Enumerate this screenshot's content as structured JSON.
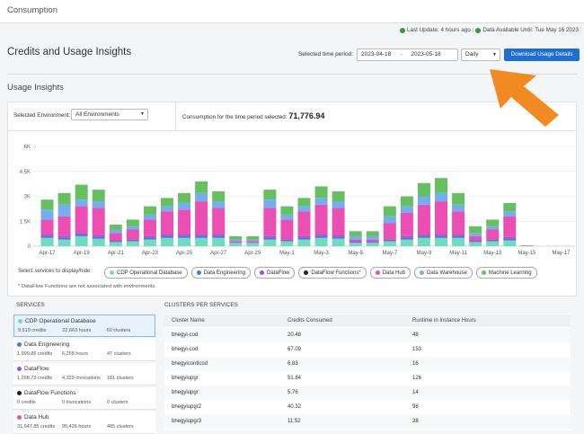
{
  "header": {
    "title": "Consumption",
    "last_update": "Last Update: 4 hours ago",
    "data_available": "Data Available Until: Tue May 16 2023"
  },
  "page_title": "Credits and Usage Insights",
  "controls": {
    "time_period_label": "Selected time period:",
    "start_date": "2023-04-18",
    "end_date": "2023-05-18",
    "granularity": "Daily",
    "download": "Download Usage Details"
  },
  "section_title": "Usage Insights",
  "filters": {
    "environment_label": "Selected Environment:",
    "environment": "All Environments",
    "consumption_label": "Consumption for the time period selected:",
    "consumption": "71,776.94"
  },
  "chart_data": {
    "type": "bar",
    "stacked": true,
    "categories": [
      "Apr-17",
      null,
      "Apr-19",
      null,
      "Apr-21",
      null,
      "Apr-23",
      null,
      "Apr-25",
      null,
      "Apr-27",
      null,
      "Apr-29",
      null,
      "May-1",
      null,
      "May-3",
      null,
      "May-5",
      null,
      "May-7",
      null,
      "May-9",
      null,
      "May-11",
      null,
      "May-13",
      null,
      "May-15",
      null,
      "May-17"
    ],
    "ylim": [
      0,
      6000
    ],
    "yticks": [
      0,
      {
        "value": 1500,
        "label": "1.5K"
      },
      {
        "value": 3000,
        "label": "3K"
      },
      {
        "value": 4500,
        "label": "4.5K"
      },
      {
        "value": 6000,
        "label": "6K"
      }
    ],
    "grid": true,
    "series": [
      {
        "name": "CDP Operational Database",
        "color": "#6ddcc0",
        "values": [
          500,
          400,
          600,
          450,
          250,
          300,
          400,
          500,
          500,
          500,
          500,
          200,
          200,
          400,
          300,
          400,
          500,
          450,
          200,
          200,
          300,
          400,
          500,
          500,
          500,
          250,
          300,
          350,
          0,
          0,
          0
        ]
      },
      {
        "name": "Data Engineering",
        "color": "#3f7fd8",
        "values": [
          100,
          100,
          100,
          100,
          50,
          50,
          100,
          100,
          100,
          100,
          100,
          0,
          0,
          100,
          50,
          100,
          100,
          100,
          50,
          50,
          50,
          100,
          100,
          100,
          100,
          50,
          50,
          100,
          0,
          0,
          0
        ]
      },
      {
        "name": "DataFlow",
        "color": "#a24fd6",
        "values": [
          100,
          100,
          100,
          100,
          50,
          50,
          100,
          100,
          100,
          100,
          100,
          50,
          50,
          100,
          50,
          100,
          100,
          100,
          50,
          50,
          50,
          100,
          100,
          100,
          100,
          50,
          50,
          100,
          0,
          0,
          0
        ]
      },
      {
        "name": "DataFlow Functions*",
        "color": "#222222",
        "values": [
          0,
          0,
          0,
          0,
          0,
          0,
          0,
          0,
          0,
          0,
          0,
          0,
          0,
          0,
          0,
          0,
          0,
          0,
          0,
          0,
          0,
          0,
          0,
          0,
          0,
          0,
          0,
          0,
          0,
          0,
          0
        ]
      },
      {
        "name": "Data Hub",
        "color": "#ec4fb4",
        "values": [
          900,
          1200,
          1600,
          1650,
          450,
          600,
          1000,
          1400,
          1500,
          2000,
          1600,
          50,
          50,
          1700,
          1200,
          1500,
          1800,
          1650,
          100,
          100,
          1000,
          1400,
          1800,
          2000,
          1400,
          250,
          600,
          1250,
          0,
          0,
          0
        ]
      },
      {
        "name": "Data Warehouse",
        "color": "#72aef0",
        "values": [
          600,
          700,
          400,
          400,
          200,
          200,
          300,
          300,
          400,
          500,
          400,
          100,
          100,
          500,
          300,
          300,
          400,
          400,
          200,
          200,
          400,
          400,
          500,
          500,
          400,
          200,
          200,
          300,
          0,
          0,
          0
        ]
      },
      {
        "name": "Machine Learning",
        "color": "#66c060",
        "values": [
          600,
          700,
          900,
          700,
          300,
          400,
          500,
          500,
          600,
          700,
          600,
          200,
          200,
          600,
          500,
          500,
          700,
          600,
          300,
          300,
          600,
          600,
          800,
          900,
          700,
          400,
          400,
          500,
          50,
          0,
          0
        ]
      }
    ]
  },
  "legend_label": "Select services to display/hide:",
  "note": "* DataFlow Functions are not associated with environments.",
  "services": {
    "title": "SERVICES",
    "items": [
      {
        "name": "CDP Operational Database",
        "color": "#6ddcc0",
        "credits": "9,619 credits",
        "usage": "22,663 hours",
        "clusters": "50 clusters"
      },
      {
        "name": "Data Engineering",
        "color": "#3f7fd8",
        "credits": "1,999.86 credits",
        "usage": "6,258 hours",
        "clusters": "47 clusters"
      },
      {
        "name": "DataFlow",
        "color": "#a24fd6",
        "credits": "1,298.73 credits",
        "usage": "4,329 invocations",
        "clusters": "181 clusters"
      },
      {
        "name": "DataFlow Functions",
        "color": "#222222",
        "credits": "0 credits",
        "usage": "0 invocations",
        "clusters": "0 clusters"
      },
      {
        "name": "Data Hub",
        "color": "#ec4fb4",
        "credits": "31,947.85 credits",
        "usage": "95,426 hours",
        "clusters": "405 clusters"
      }
    ]
  },
  "table": {
    "title": "CLUSTERS PER SERVICES",
    "columns": [
      "Cluster Name",
      "Credits Consumed",
      "Runtime in Instance Hours"
    ],
    "rows": [
      [
        "bhegyi-cod",
        "20.48",
        "48"
      ],
      [
        "bhegyi-cod",
        "67.09",
        "153"
      ],
      [
        "bhegyicontlcod",
        "6.83",
        "16"
      ],
      [
        "bhegyiupgr",
        "51.84",
        "126"
      ],
      [
        "bhegyiupgr",
        "5.76",
        "14"
      ],
      [
        "bhegyiupgr2",
        "40.32",
        "98"
      ],
      [
        "bhegyiupgr3",
        "11.52",
        "28"
      ]
    ]
  }
}
